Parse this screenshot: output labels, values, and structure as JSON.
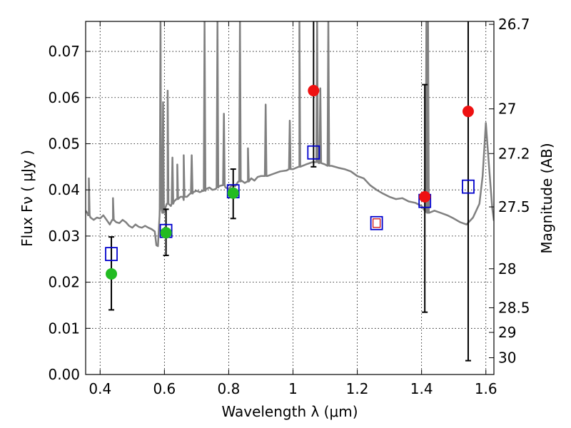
{
  "chart_data": {
    "type": "scatter",
    "xlabel": "Wavelength  λ (μm)",
    "ylabel": "Flux  Fν  ( μJy )",
    "y2label": "Magnitude (AB)",
    "xlim": [
      0.355,
      1.625
    ],
    "ylim": [
      0.0,
      0.0765
    ],
    "grid": true,
    "x_ticks": [
      {
        "value": 0.4,
        "label": "0.4"
      },
      {
        "value": 0.6,
        "label": "0.6"
      },
      {
        "value": 0.8,
        "label": "0.8"
      },
      {
        "value": 1.0,
        "label": "1"
      },
      {
        "value": 1.2,
        "label": "1.2"
      },
      {
        "value": 1.4,
        "label": "1.4"
      },
      {
        "value": 1.6,
        "label": "1.6"
      }
    ],
    "y_ticks": [
      {
        "value": 0.0,
        "label": "0.00"
      },
      {
        "value": 0.01,
        "label": "0.01"
      },
      {
        "value": 0.02,
        "label": "0.02"
      },
      {
        "value": 0.03,
        "label": "0.03"
      },
      {
        "value": 0.04,
        "label": "0.04"
      },
      {
        "value": 0.05,
        "label": "0.05"
      },
      {
        "value": 0.06,
        "label": "0.06"
      },
      {
        "value": 0.07,
        "label": "0.07"
      }
    ],
    "y2_ticks": [
      {
        "value": 26.7,
        "label": "26.7"
      },
      {
        "value": 27.0,
        "label": "27"
      },
      {
        "value": 27.2,
        "label": "27.2"
      },
      {
        "value": 27.5,
        "label": "27.5"
      },
      {
        "value": 28.0,
        "label": "28"
      },
      {
        "value": 28.5,
        "label": "28.5"
      },
      {
        "value": 29.0,
        "label": "29"
      },
      {
        "value": 30.0,
        "label": "30"
      }
    ],
    "colors": {
      "model": "#808080",
      "model_flux": "#0000cc",
      "detection": "#22bb22",
      "upper": "#ee1111",
      "marginal_edge": "#cc0000",
      "errorbar": "#000000"
    },
    "model_spectrum": {
      "x": [
        0.355,
        0.36,
        0.365,
        0.37,
        0.38,
        0.39,
        0.4,
        0.41,
        0.42,
        0.43,
        0.44,
        0.45,
        0.46,
        0.47,
        0.48,
        0.49,
        0.5,
        0.51,
        0.52,
        0.53,
        0.54,
        0.55,
        0.56,
        0.57,
        0.575,
        0.58,
        0.585,
        0.59,
        0.6,
        0.61,
        0.62,
        0.63,
        0.64,
        0.65,
        0.66,
        0.67,
        0.68,
        0.69,
        0.7,
        0.71,
        0.72,
        0.73,
        0.74,
        0.75,
        0.76,
        0.77,
        0.78,
        0.79,
        0.8,
        0.81,
        0.82,
        0.83,
        0.84,
        0.85,
        0.86,
        0.87,
        0.88,
        0.89,
        0.9,
        0.92,
        0.94,
        0.96,
        0.98,
        1.0,
        1.02,
        1.04,
        1.06,
        1.08,
        1.1,
        1.12,
        1.14,
        1.16,
        1.18,
        1.2,
        1.22,
        1.24,
        1.26,
        1.28,
        1.3,
        1.32,
        1.34,
        1.36,
        1.38,
        1.4,
        1.42,
        1.44,
        1.46,
        1.48,
        1.5,
        1.52,
        1.54,
        1.56,
        1.58,
        1.59,
        1.6,
        1.61,
        1.62,
        1.625
      ],
      "y": [
        0.0355,
        0.035,
        0.0345,
        0.034,
        0.0335,
        0.034,
        0.0338,
        0.0345,
        0.0335,
        0.0325,
        0.0335,
        0.033,
        0.0328,
        0.0335,
        0.033,
        0.0322,
        0.0318,
        0.0325,
        0.032,
        0.0318,
        0.0322,
        0.0318,
        0.0315,
        0.031,
        0.028,
        0.0278,
        0.0345,
        0.036,
        0.0355,
        0.037,
        0.0365,
        0.0375,
        0.038,
        0.0385,
        0.0378,
        0.0385,
        0.0392,
        0.0395,
        0.0398,
        0.0395,
        0.0398,
        0.0402,
        0.0405,
        0.04,
        0.0402,
        0.0408,
        0.041,
        0.0405,
        0.0402,
        0.041,
        0.0408,
        0.0418,
        0.042,
        0.0415,
        0.0418,
        0.0425,
        0.042,
        0.0428,
        0.043,
        0.043,
        0.0435,
        0.044,
        0.0442,
        0.0445,
        0.045,
        0.0455,
        0.046,
        0.0458,
        0.0455,
        0.0452,
        0.0448,
        0.0445,
        0.044,
        0.043,
        0.0425,
        0.041,
        0.04,
        0.0392,
        0.0385,
        0.038,
        0.0382,
        0.0375,
        0.0372,
        0.0365,
        0.036,
        0.0355,
        0.035,
        0.0345,
        0.0338,
        0.033,
        0.0325,
        0.034,
        0.037,
        0.043,
        0.0545,
        0.045,
        0.036,
        0.0333
      ]
    },
    "model_lines": [
      {
        "x": 0.365,
        "peak": 0.0425,
        "base": 0.0345
      },
      {
        "x": 0.44,
        "peak": 0.0382,
        "base": 0.0335
      },
      {
        "x": 0.588,
        "peak": 0.0765,
        "base": 0.036
      },
      {
        "x": 0.596,
        "peak": 0.059,
        "base": 0.035
      },
      {
        "x": 0.61,
        "peak": 0.0615,
        "base": 0.037
      },
      {
        "x": 0.625,
        "peak": 0.047,
        "base": 0.037
      },
      {
        "x": 0.64,
        "peak": 0.0455,
        "base": 0.038
      },
      {
        "x": 0.66,
        "peak": 0.0475,
        "base": 0.0385
      },
      {
        "x": 0.685,
        "peak": 0.0475,
        "base": 0.0392
      },
      {
        "x": 0.725,
        "peak": 0.0765,
        "base": 0.0398
      },
      {
        "x": 0.765,
        "peak": 0.0765,
        "base": 0.0405
      },
      {
        "x": 0.785,
        "peak": 0.0565,
        "base": 0.041
      },
      {
        "x": 0.835,
        "peak": 0.0765,
        "base": 0.0418
      },
      {
        "x": 0.86,
        "peak": 0.049,
        "base": 0.0418
      },
      {
        "x": 0.915,
        "peak": 0.0585,
        "base": 0.043
      },
      {
        "x": 0.99,
        "peak": 0.055,
        "base": 0.0445
      },
      {
        "x": 1.02,
        "peak": 0.0765,
        "base": 0.045
      },
      {
        "x": 1.075,
        "peak": 0.0765,
        "base": 0.046
      },
      {
        "x": 1.085,
        "peak": 0.062,
        "base": 0.0458
      },
      {
        "x": 1.11,
        "peak": 0.0765,
        "base": 0.0452
      },
      {
        "x": 1.415,
        "peak": 0.0765,
        "base": 0.0352
      },
      {
        "x": 1.42,
        "peak": 0.0765,
        "base": 0.035
      }
    ],
    "model_fluxes": [
      {
        "x": 0.435,
        "y": 0.0261
      },
      {
        "x": 0.605,
        "y": 0.0311
      },
      {
        "x": 0.814,
        "y": 0.0397
      },
      {
        "x": 1.064,
        "y": 0.0481
      },
      {
        "x": 1.26,
        "y": 0.0328
      },
      {
        "x": 1.41,
        "y": 0.0376
      },
      {
        "x": 1.545,
        "y": 0.0407
      }
    ],
    "observed": [
      {
        "x": 0.435,
        "y": 0.0218,
        "yerr_low": 0.014,
        "yerr_high": 0.0298,
        "kind": "detection"
      },
      {
        "x": 0.605,
        "y": 0.0307,
        "yerr_low": 0.0258,
        "yerr_high": 0.0358,
        "kind": "detection"
      },
      {
        "x": 0.814,
        "y": 0.0393,
        "yerr_low": 0.0338,
        "yerr_high": 0.0445,
        "kind": "detection"
      },
      {
        "x": 1.064,
        "y": 0.0615,
        "yerr_low": 0.045,
        "yerr_high": 0.0765,
        "kind": "upper"
      },
      {
        "x": 1.41,
        "y": 0.0385,
        "yerr_low": 0.0135,
        "yerr_high": 0.0628,
        "kind": "upper"
      },
      {
        "x": 1.545,
        "y": 0.057,
        "yerr_low": 0.003,
        "yerr_high": 0.0765,
        "kind": "upper"
      }
    ]
  }
}
